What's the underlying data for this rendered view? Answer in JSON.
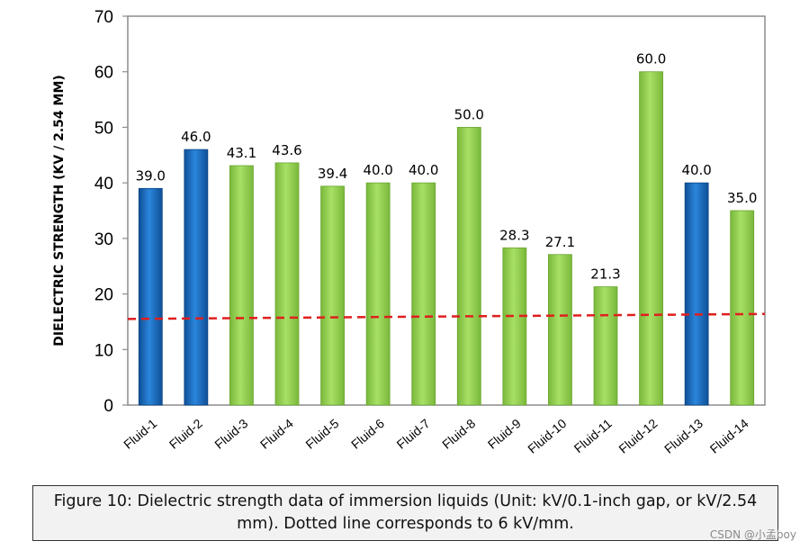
{
  "chart_data": {
    "type": "bar",
    "title": "",
    "xlabel": "",
    "ylabel": "DIELECTRIC STRENGTH (KV / 2.54 MM)",
    "ylim": [
      0,
      70
    ],
    "yticks": [
      "0",
      "10",
      "20",
      "30",
      "40",
      "50",
      "60",
      "70"
    ],
    "categories": [
      "Fluid-1",
      "Fluid-2",
      "Fluid-3",
      "Fluid-4",
      "Fluid-5",
      "Fluid-6",
      "Fluid-7",
      "Fluid-8",
      "Fluid-9",
      "Fluid-10",
      "Fluid-11",
      "Fluid-12",
      "Fluid-13",
      "Fluid-14"
    ],
    "values": [
      39.0,
      46.0,
      43.1,
      43.6,
      39.4,
      40.0,
      40.0,
      50.0,
      28.3,
      27.1,
      21.3,
      60.0,
      40.0,
      35.0
    ],
    "value_labels": [
      "39.0",
      "46.0",
      "43.1",
      "43.6",
      "39.4",
      "40.0",
      "40.0",
      "50.0",
      "28.3",
      "27.1",
      "21.3",
      "60.0",
      "40.0",
      "35.0"
    ],
    "bar_groups": [
      "blue",
      "blue",
      "green",
      "green",
      "green",
      "green",
      "green",
      "green",
      "green",
      "green",
      "green",
      "green",
      "blue",
      "green"
    ],
    "reference_line": {
      "style": "dashed",
      "y_start": 15.5,
      "y_end": 16.4
    },
    "grid": false
  },
  "colors": {
    "blue": "#1a6fc4",
    "green": "#92d050",
    "reference": "#e01f1f",
    "axis": "#8c8c8c"
  },
  "caption": {
    "line1": "Figure 10: Dielectric strength data of immersion liquids (Unit: kV/0.1-inch gap, or kV/2.54",
    "line2": "mm). Dotted line corresponds to 6 kV/mm."
  },
  "watermark": "CSDN @小孟boy"
}
